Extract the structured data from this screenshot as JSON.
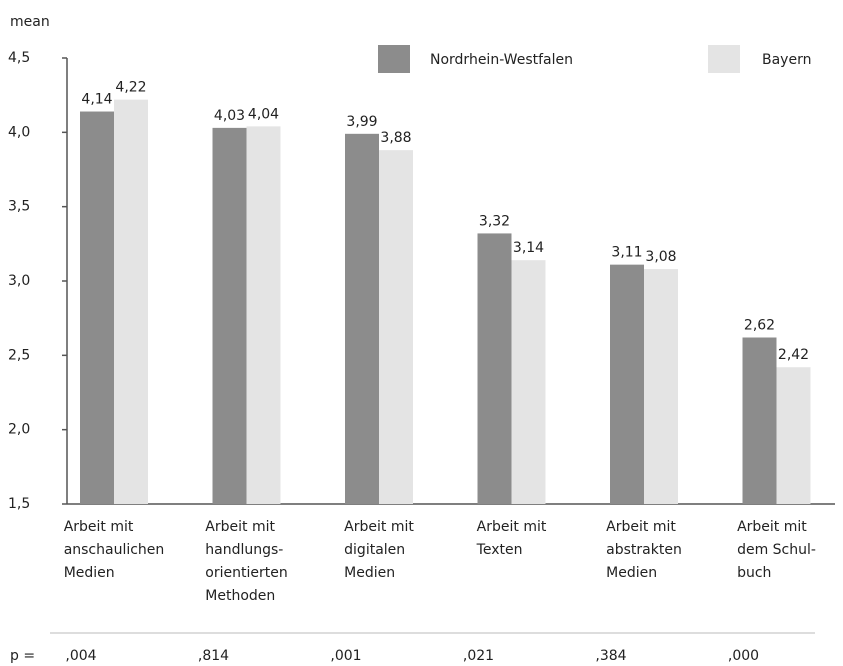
{
  "chart_data": {
    "type": "bar",
    "y_label": "mean",
    "categories": [
      [
        "Arbeit mit",
        "anschaulichen",
        "Medien"
      ],
      [
        "Arbeit mit",
        "handlungs-",
        "orientierten",
        "Methoden"
      ],
      [
        "Arbeit mit",
        "digitalen",
        "Medien"
      ],
      [
        "Arbeit mit",
        "Texten"
      ],
      [
        "Arbeit mit",
        "abstrakten",
        "Medien"
      ],
      [
        "Arbeit mit",
        "dem Schul-",
        "buch"
      ]
    ],
    "series": [
      {
        "name": "Nordrhein-Westfalen",
        "color": "#8c8c8c",
        "values": [
          4.14,
          4.03,
          3.99,
          3.32,
          3.11,
          2.62
        ],
        "value_labels": [
          "4,14",
          "4,03",
          "3,99",
          "3,32",
          "3,11",
          "2,62"
        ]
      },
      {
        "name": "Bayern",
        "color": "#e4e4e4",
        "values": [
          4.22,
          4.04,
          3.88,
          3.14,
          3.08,
          2.42
        ],
        "value_labels": [
          "4,22",
          "4,04",
          "3,88",
          "3,14",
          "3,08",
          "2,42"
        ]
      }
    ],
    "ylim": [
      1.5,
      4.5
    ],
    "yticks": [
      {
        "value": 1.5,
        "label": "1,5"
      },
      {
        "value": 2.0,
        "label": "2,0"
      },
      {
        "value": 2.5,
        "label": "2,5"
      },
      {
        "value": 3.0,
        "label": "3,0"
      },
      {
        "value": 3.5,
        "label": "3,5"
      },
      {
        "value": 4.0,
        "label": "4,0"
      },
      {
        "value": 4.5,
        "label": "4,5"
      }
    ],
    "grid": false,
    "p_label": "p =",
    "p_values": [
      ",004",
      ",814",
      ",001",
      ",021",
      ",384",
      ",000"
    ]
  }
}
